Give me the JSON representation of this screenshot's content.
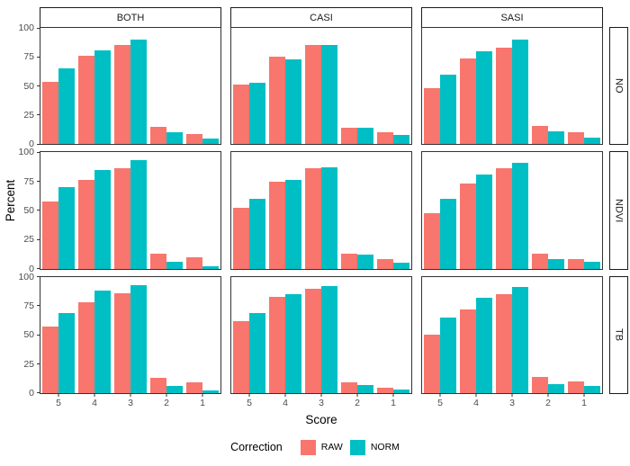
{
  "figure": {
    "y_axis_title": "Percent",
    "x_axis_title": "Score",
    "legend_title": "Correction"
  },
  "chart_data": {
    "type": "bar",
    "layout": "facet_grid 3x3, dodged bars, no gridlines, legend bottom",
    "facet_columns": [
      "BOTH",
      "CASI",
      "SASI"
    ],
    "facet_rows": [
      "NO",
      "NDVI",
      "TB"
    ],
    "x_categories": [
      "5",
      "4",
      "3",
      "2",
      "1"
    ],
    "xlabel": "Score",
    "ylabel": "Percent",
    "ylim": [
      0,
      100
    ],
    "yticks": [
      0,
      25,
      50,
      75,
      100
    ],
    "legend": {
      "title": "Correction",
      "position": "bottom"
    },
    "series": [
      {
        "name": "RAW",
        "color": "#F8766D"
      },
      {
        "name": "NORM",
        "color": "#00BFC4"
      }
    ],
    "panels": [
      {
        "facet_row": "NO",
        "facet_col": "BOTH",
        "values": {
          "RAW": [
            54,
            76,
            85,
            15,
            9
          ],
          "NORM": [
            65,
            81,
            90,
            10,
            5
          ]
        }
      },
      {
        "facet_row": "NO",
        "facet_col": "CASI",
        "values": {
          "RAW": [
            51,
            75,
            85,
            14,
            10
          ],
          "NORM": [
            53,
            73,
            85,
            14,
            8
          ]
        }
      },
      {
        "facet_row": "NO",
        "facet_col": "SASI",
        "values": {
          "RAW": [
            48,
            74,
            83,
            16,
            10
          ],
          "NORM": [
            60,
            80,
            90,
            11,
            6
          ]
        }
      },
      {
        "facet_row": "NDVI",
        "facet_col": "BOTH",
        "values": {
          "RAW": [
            58,
            76,
            86,
            13,
            10
          ],
          "NORM": [
            70,
            85,
            93,
            6,
            2
          ]
        }
      },
      {
        "facet_row": "NDVI",
        "facet_col": "CASI",
        "values": {
          "RAW": [
            52,
            75,
            86,
            13,
            8
          ],
          "NORM": [
            60,
            76,
            87,
            12,
            5
          ]
        }
      },
      {
        "facet_row": "NDVI",
        "facet_col": "SASI",
        "values": {
          "RAW": [
            48,
            73,
            86,
            13,
            8
          ],
          "NORM": [
            60,
            81,
            91,
            8,
            6
          ]
        }
      },
      {
        "facet_row": "TB",
        "facet_col": "BOTH",
        "values": {
          "RAW": [
            57,
            78,
            86,
            13,
            9
          ],
          "NORM": [
            69,
            88,
            93,
            6,
            2
          ]
        }
      },
      {
        "facet_row": "TB",
        "facet_col": "CASI",
        "values": {
          "RAW": [
            62,
            83,
            90,
            9,
            5
          ],
          "NORM": [
            69,
            85,
            92,
            7,
            3
          ]
        }
      },
      {
        "facet_row": "TB",
        "facet_col": "SASI",
        "values": {
          "RAW": [
            50,
            72,
            85,
            14,
            10
          ],
          "NORM": [
            65,
            82,
            91,
            8,
            6
          ]
        }
      }
    ]
  }
}
